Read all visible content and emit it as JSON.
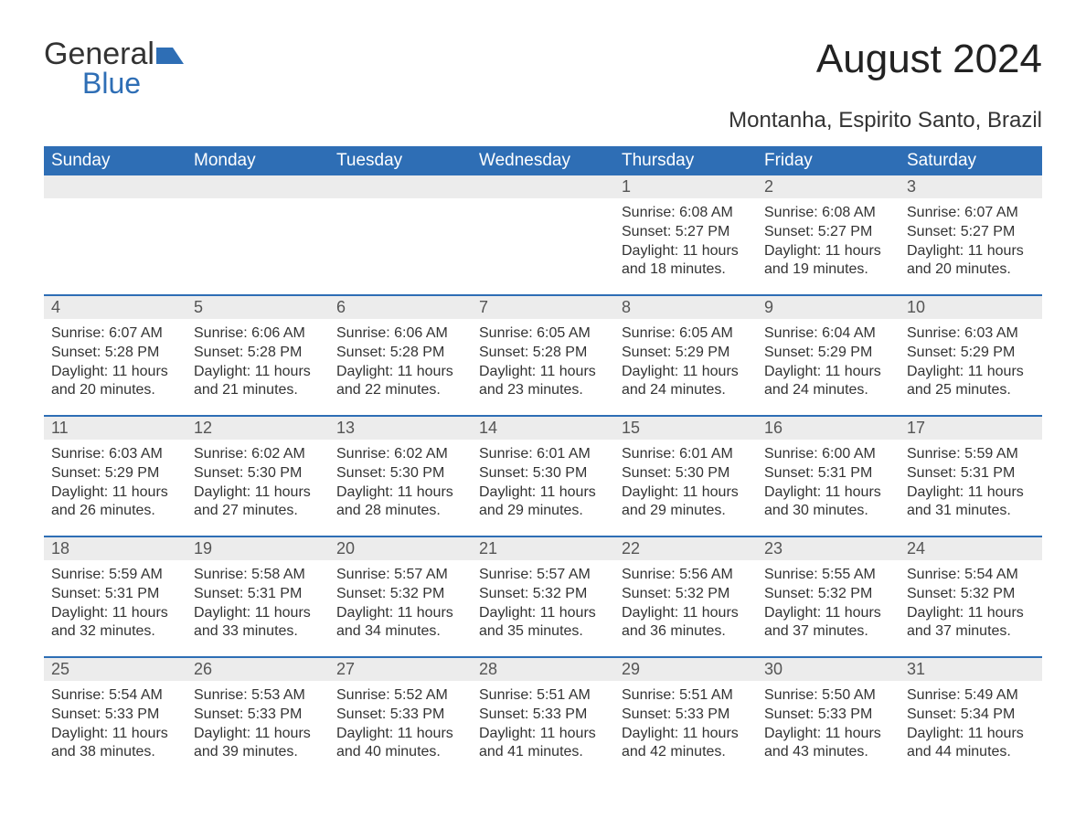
{
  "branding": {
    "logo_general": "General",
    "logo_blue": "Blue",
    "logo_accent_color": "#2e6eb5",
    "logo_text_color": "#333333"
  },
  "header": {
    "title": "August 2024",
    "location": "Montanha, Espirito Santo, Brazil"
  },
  "styling": {
    "header_bg": "#2e6eb5",
    "header_fg": "#ffffff",
    "daynum_bg": "#ececec",
    "daynum_fg": "#555555",
    "week_divider": "#2e6eb5",
    "body_bg": "#ffffff",
    "text_color": "#333333",
    "title_fontsize_pt": 33,
    "location_fontsize_pt": 18,
    "dayheader_fontsize_pt": 14,
    "body_fontsize_pt": 12
  },
  "calendar": {
    "day_names": [
      "Sunday",
      "Monday",
      "Tuesday",
      "Wednesday",
      "Thursday",
      "Friday",
      "Saturday"
    ],
    "weeks": [
      [
        {
          "empty": true
        },
        {
          "empty": true
        },
        {
          "empty": true
        },
        {
          "empty": true
        },
        {
          "num": "1",
          "sunrise": "Sunrise: 6:08 AM",
          "sunset": "Sunset: 5:27 PM",
          "daylight1": "Daylight: 11 hours",
          "daylight2": "and 18 minutes."
        },
        {
          "num": "2",
          "sunrise": "Sunrise: 6:08 AM",
          "sunset": "Sunset: 5:27 PM",
          "daylight1": "Daylight: 11 hours",
          "daylight2": "and 19 minutes."
        },
        {
          "num": "3",
          "sunrise": "Sunrise: 6:07 AM",
          "sunset": "Sunset: 5:27 PM",
          "daylight1": "Daylight: 11 hours",
          "daylight2": "and 20 minutes."
        }
      ],
      [
        {
          "num": "4",
          "sunrise": "Sunrise: 6:07 AM",
          "sunset": "Sunset: 5:28 PM",
          "daylight1": "Daylight: 11 hours",
          "daylight2": "and 20 minutes."
        },
        {
          "num": "5",
          "sunrise": "Sunrise: 6:06 AM",
          "sunset": "Sunset: 5:28 PM",
          "daylight1": "Daylight: 11 hours",
          "daylight2": "and 21 minutes."
        },
        {
          "num": "6",
          "sunrise": "Sunrise: 6:06 AM",
          "sunset": "Sunset: 5:28 PM",
          "daylight1": "Daylight: 11 hours",
          "daylight2": "and 22 minutes."
        },
        {
          "num": "7",
          "sunrise": "Sunrise: 6:05 AM",
          "sunset": "Sunset: 5:28 PM",
          "daylight1": "Daylight: 11 hours",
          "daylight2": "and 23 minutes."
        },
        {
          "num": "8",
          "sunrise": "Sunrise: 6:05 AM",
          "sunset": "Sunset: 5:29 PM",
          "daylight1": "Daylight: 11 hours",
          "daylight2": "and 24 minutes."
        },
        {
          "num": "9",
          "sunrise": "Sunrise: 6:04 AM",
          "sunset": "Sunset: 5:29 PM",
          "daylight1": "Daylight: 11 hours",
          "daylight2": "and 24 minutes."
        },
        {
          "num": "10",
          "sunrise": "Sunrise: 6:03 AM",
          "sunset": "Sunset: 5:29 PM",
          "daylight1": "Daylight: 11 hours",
          "daylight2": "and 25 minutes."
        }
      ],
      [
        {
          "num": "11",
          "sunrise": "Sunrise: 6:03 AM",
          "sunset": "Sunset: 5:29 PM",
          "daylight1": "Daylight: 11 hours",
          "daylight2": "and 26 minutes."
        },
        {
          "num": "12",
          "sunrise": "Sunrise: 6:02 AM",
          "sunset": "Sunset: 5:30 PM",
          "daylight1": "Daylight: 11 hours",
          "daylight2": "and 27 minutes."
        },
        {
          "num": "13",
          "sunrise": "Sunrise: 6:02 AM",
          "sunset": "Sunset: 5:30 PM",
          "daylight1": "Daylight: 11 hours",
          "daylight2": "and 28 minutes."
        },
        {
          "num": "14",
          "sunrise": "Sunrise: 6:01 AM",
          "sunset": "Sunset: 5:30 PM",
          "daylight1": "Daylight: 11 hours",
          "daylight2": "and 29 minutes."
        },
        {
          "num": "15",
          "sunrise": "Sunrise: 6:01 AM",
          "sunset": "Sunset: 5:30 PM",
          "daylight1": "Daylight: 11 hours",
          "daylight2": "and 29 minutes."
        },
        {
          "num": "16",
          "sunrise": "Sunrise: 6:00 AM",
          "sunset": "Sunset: 5:31 PM",
          "daylight1": "Daylight: 11 hours",
          "daylight2": "and 30 minutes."
        },
        {
          "num": "17",
          "sunrise": "Sunrise: 5:59 AM",
          "sunset": "Sunset: 5:31 PM",
          "daylight1": "Daylight: 11 hours",
          "daylight2": "and 31 minutes."
        }
      ],
      [
        {
          "num": "18",
          "sunrise": "Sunrise: 5:59 AM",
          "sunset": "Sunset: 5:31 PM",
          "daylight1": "Daylight: 11 hours",
          "daylight2": "and 32 minutes."
        },
        {
          "num": "19",
          "sunrise": "Sunrise: 5:58 AM",
          "sunset": "Sunset: 5:31 PM",
          "daylight1": "Daylight: 11 hours",
          "daylight2": "and 33 minutes."
        },
        {
          "num": "20",
          "sunrise": "Sunrise: 5:57 AM",
          "sunset": "Sunset: 5:32 PM",
          "daylight1": "Daylight: 11 hours",
          "daylight2": "and 34 minutes."
        },
        {
          "num": "21",
          "sunrise": "Sunrise: 5:57 AM",
          "sunset": "Sunset: 5:32 PM",
          "daylight1": "Daylight: 11 hours",
          "daylight2": "and 35 minutes."
        },
        {
          "num": "22",
          "sunrise": "Sunrise: 5:56 AM",
          "sunset": "Sunset: 5:32 PM",
          "daylight1": "Daylight: 11 hours",
          "daylight2": "and 36 minutes."
        },
        {
          "num": "23",
          "sunrise": "Sunrise: 5:55 AM",
          "sunset": "Sunset: 5:32 PM",
          "daylight1": "Daylight: 11 hours",
          "daylight2": "and 37 minutes."
        },
        {
          "num": "24",
          "sunrise": "Sunrise: 5:54 AM",
          "sunset": "Sunset: 5:32 PM",
          "daylight1": "Daylight: 11 hours",
          "daylight2": "and 37 minutes."
        }
      ],
      [
        {
          "num": "25",
          "sunrise": "Sunrise: 5:54 AM",
          "sunset": "Sunset: 5:33 PM",
          "daylight1": "Daylight: 11 hours",
          "daylight2": "and 38 minutes."
        },
        {
          "num": "26",
          "sunrise": "Sunrise: 5:53 AM",
          "sunset": "Sunset: 5:33 PM",
          "daylight1": "Daylight: 11 hours",
          "daylight2": "and 39 minutes."
        },
        {
          "num": "27",
          "sunrise": "Sunrise: 5:52 AM",
          "sunset": "Sunset: 5:33 PM",
          "daylight1": "Daylight: 11 hours",
          "daylight2": "and 40 minutes."
        },
        {
          "num": "28",
          "sunrise": "Sunrise: 5:51 AM",
          "sunset": "Sunset: 5:33 PM",
          "daylight1": "Daylight: 11 hours",
          "daylight2": "and 41 minutes."
        },
        {
          "num": "29",
          "sunrise": "Sunrise: 5:51 AM",
          "sunset": "Sunset: 5:33 PM",
          "daylight1": "Daylight: 11 hours",
          "daylight2": "and 42 minutes."
        },
        {
          "num": "30",
          "sunrise": "Sunrise: 5:50 AM",
          "sunset": "Sunset: 5:33 PM",
          "daylight1": "Daylight: 11 hours",
          "daylight2": "and 43 minutes."
        },
        {
          "num": "31",
          "sunrise": "Sunrise: 5:49 AM",
          "sunset": "Sunset: 5:34 PM",
          "daylight1": "Daylight: 11 hours",
          "daylight2": "and 44 minutes."
        }
      ]
    ]
  }
}
